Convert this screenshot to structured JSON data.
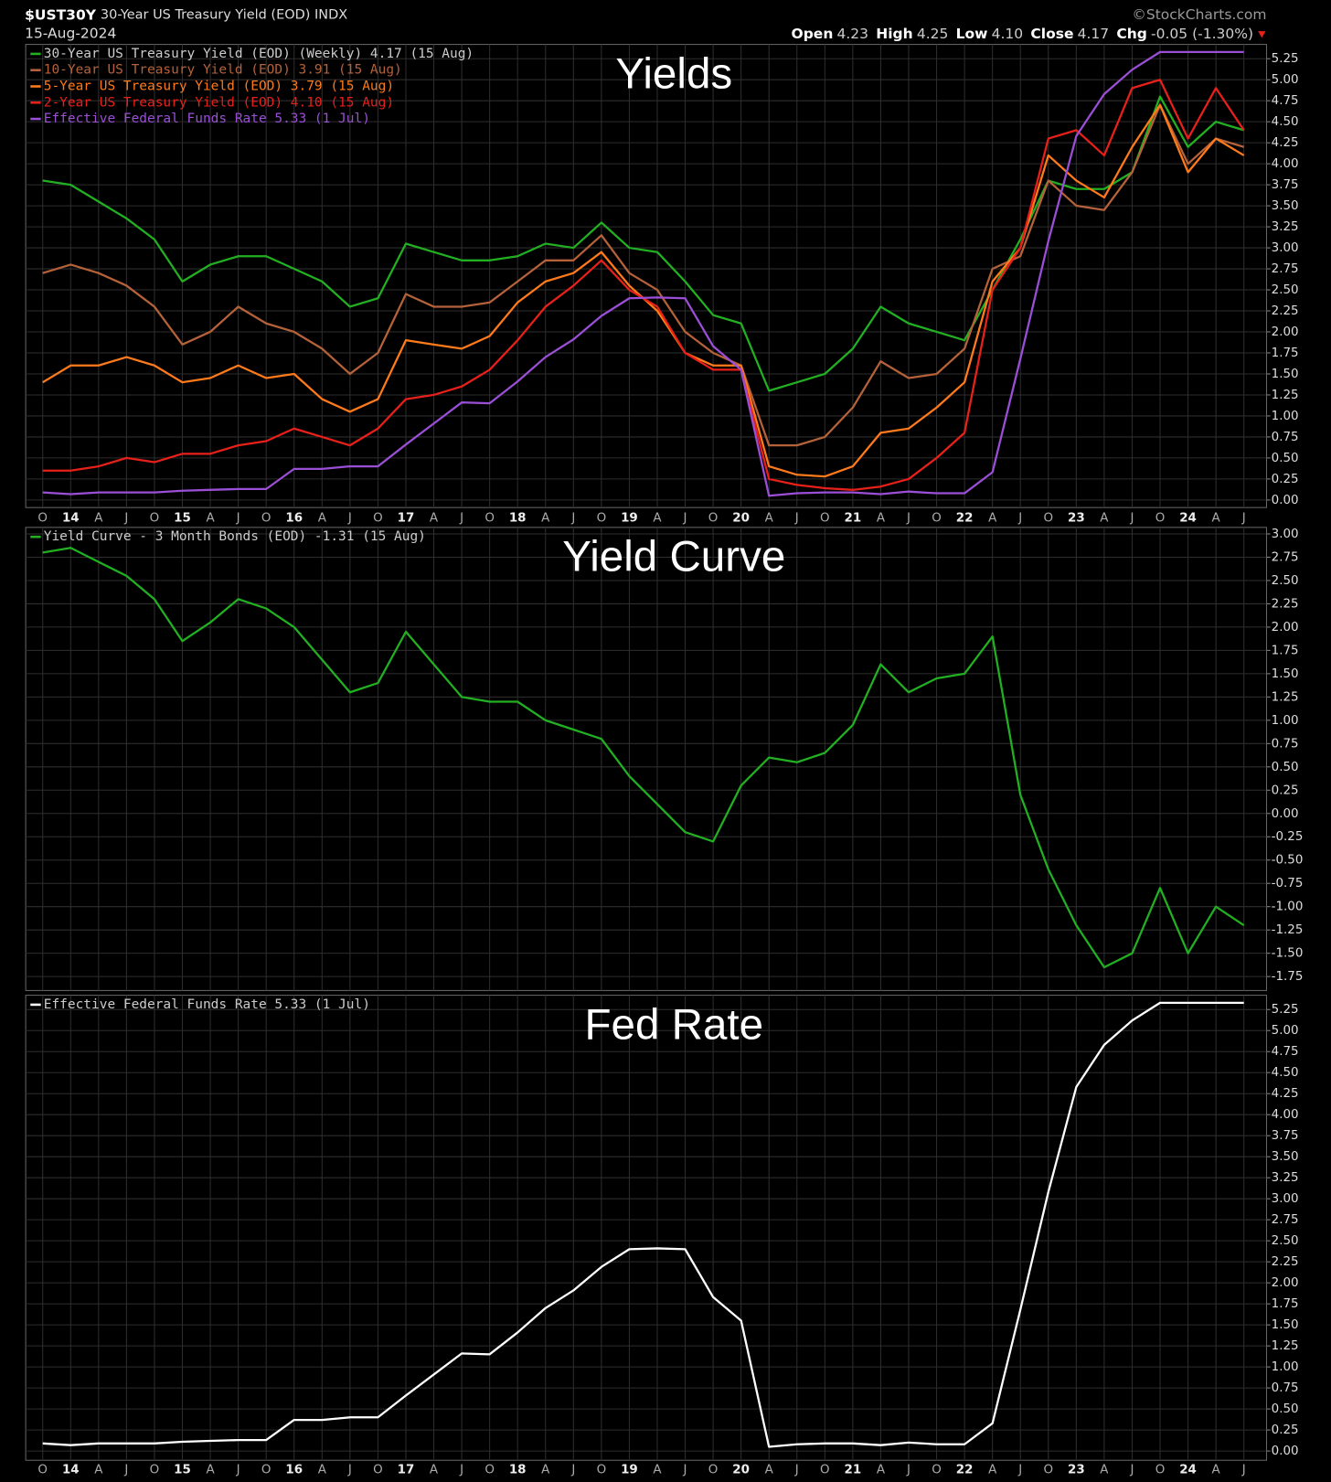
{
  "header": {
    "symbol": "$UST30Y",
    "name": "30-Year US Treasury Yield (EOD) INDX",
    "date": "15-Aug-2024",
    "source": "©StockCharts.com",
    "ohlc": [
      {
        "label": "Open",
        "value": "4.23"
      },
      {
        "label": "High",
        "value": "4.25"
      },
      {
        "label": "Low",
        "value": "4.10"
      },
      {
        "label": "Close",
        "value": "4.17"
      },
      {
        "label": "Chg",
        "value": "-0.05 (-1.30%)"
      }
    ]
  },
  "chart_data": [
    {
      "type": "line",
      "title": "Yields",
      "grid": true,
      "legend": "top-left",
      "categories": [
        "O",
        "14",
        "A",
        "J",
        "O",
        "15",
        "A",
        "J",
        "O",
        "16",
        "A",
        "J",
        "O",
        "17",
        "A",
        "J",
        "O",
        "18",
        "A",
        "J",
        "O",
        "19",
        "A",
        "J",
        "O",
        "20",
        "A",
        "J",
        "O",
        "21",
        "A",
        "J",
        "O",
        "22",
        "A",
        "J",
        "O",
        "23",
        "A",
        "J",
        "O",
        "24",
        "A",
        "J"
      ],
      "ylim": [
        -0.09,
        5.42
      ],
      "yticks": [
        {
          "value": 0,
          "label": "0.00"
        },
        {
          "value": 0.25,
          "label": "0.25"
        },
        {
          "value": 0.5,
          "label": "0.50"
        },
        {
          "value": 0.75,
          "label": "0.75"
        },
        {
          "value": 1,
          "label": "1.00"
        },
        {
          "value": 1.25,
          "label": "1.25"
        },
        {
          "value": 1.5,
          "label": "1.50"
        },
        {
          "value": 1.75,
          "label": "1.75"
        },
        {
          "value": 2,
          "label": "2.00"
        },
        {
          "value": 2.25,
          "label": "2.25"
        },
        {
          "value": 2.5,
          "label": "2.50"
        },
        {
          "value": 2.75,
          "label": "2.75"
        },
        {
          "value": 3,
          "label": "3.00"
        },
        {
          "value": 3.25,
          "label": "3.25"
        },
        {
          "value": 3.5,
          "label": "3.50"
        },
        {
          "value": 3.75,
          "label": "3.75"
        },
        {
          "value": 4,
          "label": "4.00"
        },
        {
          "value": 4.25,
          "label": "4.25"
        },
        {
          "value": 4.5,
          "label": "4.50"
        },
        {
          "value": 4.75,
          "label": "4.75"
        },
        {
          "value": 5,
          "label": "5.00"
        },
        {
          "value": 5.25,
          "label": "5.25"
        }
      ],
      "series": [
        {
          "name": "30-Year US Treasury Yield (EOD) (Weekly) 4.17 (15 Aug)",
          "color": "#22b022",
          "values": [
            3.8,
            3.75,
            3.55,
            3.35,
            3.1,
            2.6,
            2.8,
            2.9,
            2.9,
            2.75,
            2.6,
            2.3,
            2.4,
            3.05,
            2.95,
            2.85,
            2.85,
            2.9,
            3.05,
            3.0,
            3.3,
            3.0,
            2.95,
            2.6,
            2.2,
            2.1,
            1.3,
            1.4,
            1.5,
            1.8,
            2.3,
            2.1,
            2.0,
            1.9,
            2.5,
            3.1,
            3.8,
            3.7,
            3.7,
            3.9,
            4.8,
            4.2,
            4.5,
            4.4
          ]
        },
        {
          "name": "10-Year US Treasury Yield (EOD) 3.91 (15 Aug)",
          "color": "#b5623a",
          "values": [
            2.7,
            2.8,
            2.7,
            2.55,
            2.3,
            1.85,
            2.0,
            2.3,
            2.1,
            2.0,
            1.8,
            1.5,
            1.75,
            2.45,
            2.3,
            2.3,
            2.35,
            2.6,
            2.85,
            2.85,
            3.15,
            2.7,
            2.5,
            2.0,
            1.75,
            1.6,
            0.65,
            0.65,
            0.75,
            1.1,
            1.65,
            1.45,
            1.5,
            1.8,
            2.75,
            2.9,
            3.8,
            3.5,
            3.45,
            3.9,
            4.7,
            4.0,
            4.3,
            4.2
          ]
        },
        {
          "name": "5-Year US Treasury Yield (EOD) 3.79 (15 Aug)",
          "color": "#ff7a1a",
          "values": [
            1.4,
            1.6,
            1.6,
            1.7,
            1.6,
            1.4,
            1.45,
            1.6,
            1.45,
            1.5,
            1.2,
            1.05,
            1.2,
            1.9,
            1.85,
            1.8,
            1.95,
            2.35,
            2.6,
            2.7,
            2.95,
            2.55,
            2.25,
            1.75,
            1.6,
            1.6,
            0.4,
            0.3,
            0.28,
            0.4,
            0.8,
            0.85,
            1.1,
            1.4,
            2.6,
            3.0,
            4.1,
            3.8,
            3.6,
            4.2,
            4.7,
            3.9,
            4.3,
            4.1
          ]
        },
        {
          "name": "2-Year US Treasury Yield (EOD) 4.10 (15 Aug)",
          "color": "#e8201a",
          "values": [
            0.35,
            0.35,
            0.4,
            0.5,
            0.45,
            0.55,
            0.55,
            0.65,
            0.7,
            0.85,
            0.75,
            0.65,
            0.85,
            1.2,
            1.25,
            1.35,
            1.55,
            1.9,
            2.3,
            2.55,
            2.85,
            2.5,
            2.3,
            1.75,
            1.55,
            1.55,
            0.25,
            0.18,
            0.14,
            0.12,
            0.16,
            0.25,
            0.5,
            0.8,
            2.5,
            3.0,
            4.3,
            4.4,
            4.1,
            4.9,
            5.0,
            4.3,
            4.9,
            4.4
          ]
        },
        {
          "name": "Effective Federal Funds Rate 5.33 (1 Jul)",
          "color": "#9a4fd6",
          "values": [
            0.09,
            0.07,
            0.09,
            0.09,
            0.09,
            0.11,
            0.12,
            0.13,
            0.13,
            0.37,
            0.37,
            0.4,
            0.4,
            0.66,
            0.91,
            1.16,
            1.15,
            1.41,
            1.7,
            1.91,
            2.19,
            2.4,
            2.41,
            2.4,
            1.83,
            1.55,
            0.05,
            0.08,
            0.09,
            0.09,
            0.07,
            0.1,
            0.08,
            0.08,
            0.33,
            1.68,
            3.08,
            4.33,
            4.83,
            5.12,
            5.33,
            5.33,
            5.33,
            5.33
          ]
        }
      ]
    },
    {
      "type": "line",
      "title": "Yield Curve",
      "grid": true,
      "legend": "top-left",
      "ylim": [
        -1.9,
        3.07
      ],
      "yticks": [
        {
          "value": -1.75,
          "label": "-1.75"
        },
        {
          "value": -1.5,
          "label": "-1.50"
        },
        {
          "value": -1.25,
          "label": "-1.25"
        },
        {
          "value": -1,
          "label": "-1.00"
        },
        {
          "value": -0.75,
          "label": "-0.75"
        },
        {
          "value": -0.5,
          "label": "-0.50"
        },
        {
          "value": -0.25,
          "label": "-0.25"
        },
        {
          "value": 0,
          "label": "0.00"
        },
        {
          "value": 0.25,
          "label": "0.25"
        },
        {
          "value": 0.5,
          "label": "0.50"
        },
        {
          "value": 0.75,
          "label": "0.75"
        },
        {
          "value": 1,
          "label": "1.00"
        },
        {
          "value": 1.25,
          "label": "1.25"
        },
        {
          "value": 1.5,
          "label": "1.50"
        },
        {
          "value": 1.75,
          "label": "1.75"
        },
        {
          "value": 2,
          "label": "2.00"
        },
        {
          "value": 2.25,
          "label": "2.25"
        },
        {
          "value": 2.5,
          "label": "2.50"
        },
        {
          "value": 2.75,
          "label": "2.75"
        },
        {
          "value": 3,
          "label": "3.00"
        }
      ],
      "series": [
        {
          "name": "Yield Curve - 3 Month Bonds (EOD) -1.31 (15 Aug)",
          "color": "#22b022",
          "values": [
            2.8,
            2.85,
            2.7,
            2.55,
            2.3,
            1.85,
            2.05,
            2.3,
            2.2,
            2.0,
            1.65,
            1.3,
            1.4,
            1.95,
            1.6,
            1.25,
            1.2,
            1.2,
            1.0,
            0.9,
            0.8,
            0.4,
            0.1,
            -0.2,
            -0.3,
            0.3,
            0.6,
            0.55,
            0.65,
            0.95,
            1.6,
            1.3,
            1.45,
            1.5,
            1.9,
            0.2,
            -0.6,
            -1.2,
            -1.65,
            -1.5,
            -0.8,
            -1.5,
            -1.0,
            -1.2
          ]
        }
      ]
    },
    {
      "type": "line",
      "title": "Fed Rate",
      "grid": true,
      "legend": "top-left",
      "categories": [
        "O",
        "14",
        "A",
        "J",
        "O",
        "15",
        "A",
        "J",
        "O",
        "16",
        "A",
        "J",
        "O",
        "17",
        "A",
        "J",
        "O",
        "18",
        "A",
        "J",
        "O",
        "19",
        "A",
        "J",
        "O",
        "20",
        "A",
        "J",
        "O",
        "21",
        "A",
        "J",
        "O",
        "22",
        "A",
        "J",
        "O",
        "23",
        "A",
        "J",
        "O",
        "24",
        "A",
        "J"
      ],
      "ylim": [
        -0.11,
        5.42
      ],
      "yticks": [
        {
          "value": 0,
          "label": "0.00"
        },
        {
          "value": 0.25,
          "label": "0.25"
        },
        {
          "value": 0.5,
          "label": "0.50"
        },
        {
          "value": 0.75,
          "label": "0.75"
        },
        {
          "value": 1,
          "label": "1.00"
        },
        {
          "value": 1.25,
          "label": "1.25"
        },
        {
          "value": 1.5,
          "label": "1.50"
        },
        {
          "value": 1.75,
          "label": "1.75"
        },
        {
          "value": 2,
          "label": "2.00"
        },
        {
          "value": 2.25,
          "label": "2.25"
        },
        {
          "value": 2.5,
          "label": "2.50"
        },
        {
          "value": 2.75,
          "label": "2.75"
        },
        {
          "value": 3,
          "label": "3.00"
        },
        {
          "value": 3.25,
          "label": "3.25"
        },
        {
          "value": 3.5,
          "label": "3.50"
        },
        {
          "value": 3.75,
          "label": "3.75"
        },
        {
          "value": 4,
          "label": "4.00"
        },
        {
          "value": 4.25,
          "label": "4.25"
        },
        {
          "value": 4.5,
          "label": "4.50"
        },
        {
          "value": 4.75,
          "label": "4.75"
        },
        {
          "value": 5,
          "label": "5.00"
        },
        {
          "value": 5.25,
          "label": "5.25"
        }
      ],
      "series": [
        {
          "name": "Effective Federal Funds Rate 5.33 (1 Jul)",
          "color": "#ffffff",
          "values": [
            0.09,
            0.07,
            0.09,
            0.09,
            0.09,
            0.11,
            0.12,
            0.13,
            0.13,
            0.37,
            0.37,
            0.4,
            0.4,
            0.66,
            0.91,
            1.16,
            1.15,
            1.41,
            1.7,
            1.91,
            2.19,
            2.4,
            2.41,
            2.4,
            1.83,
            1.55,
            0.05,
            0.08,
            0.09,
            0.09,
            0.07,
            0.1,
            0.08,
            0.08,
            0.33,
            1.68,
            3.08,
            4.33,
            4.83,
            5.12,
            5.33,
            5.33,
            5.33,
            5.33
          ]
        }
      ]
    }
  ]
}
